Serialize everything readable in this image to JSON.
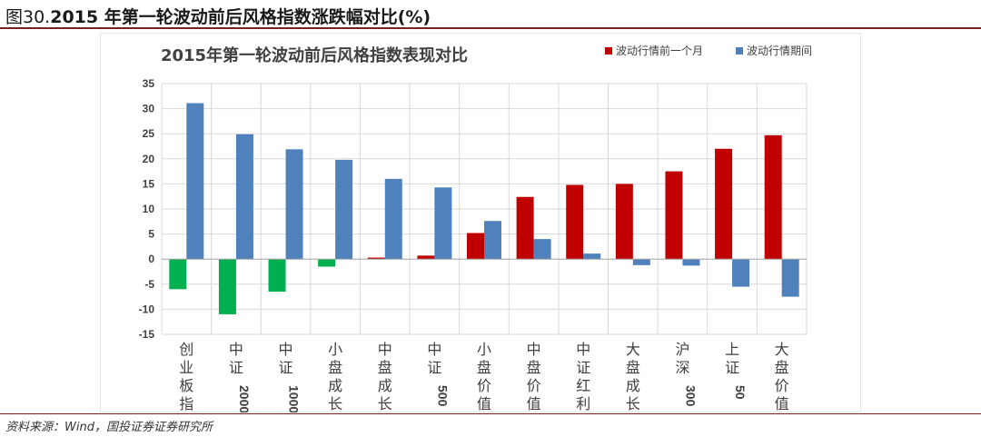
{
  "figure": {
    "label": "图30.",
    "title_bold": "2015 年第一轮波动前后风格指数涨跌幅对比(%)"
  },
  "source": "资料来源：Wind，国投证券证券研究所",
  "colors": {
    "pre": "#c00000",
    "pre_negative": "#00b050",
    "during": "#4f81bd",
    "grid": "#d9d9d9",
    "axis_text": "#404040"
  },
  "chart_data": {
    "type": "bar",
    "title": "2015年第一轮波动前后风格指数表现对比",
    "xlabel": "",
    "ylabel": "",
    "ylim": [
      -15,
      35
    ],
    "yticks": [
      -15,
      -10,
      -5,
      0,
      5,
      10,
      15,
      20,
      25,
      30,
      35
    ],
    "grid": true,
    "legend_position": "top-right",
    "categories": [
      "创业板指",
      "中证2000",
      "中证1000",
      "小盘成长",
      "中盘成长",
      "中证500",
      "小盘价值",
      "中盘价值",
      "中证红利",
      "大盘成长",
      "沪深300",
      "上证50",
      "大盘价值"
    ],
    "category_labels": [
      [
        "创",
        "业",
        "板",
        "指"
      ],
      [
        "中",
        "证",
        "2000"
      ],
      [
        "中",
        "证",
        "1000"
      ],
      [
        "小",
        "盘",
        "成",
        "长"
      ],
      [
        "中",
        "盘",
        "成",
        "长"
      ],
      [
        "中",
        "证",
        "500"
      ],
      [
        "小",
        "盘",
        "价",
        "值"
      ],
      [
        "中",
        "盘",
        "价",
        "值"
      ],
      [
        "中",
        "证",
        "红",
        "利"
      ],
      [
        "大",
        "盘",
        "成",
        "长"
      ],
      [
        "沪",
        "深",
        "300"
      ],
      [
        "上",
        "证",
        "50"
      ],
      [
        "大",
        "盘",
        "价",
        "值"
      ]
    ],
    "series": [
      {
        "name": "波动行情前一个月",
        "values": [
          -6.0,
          -11.0,
          -6.5,
          -1.5,
          0.3,
          0.7,
          5.2,
          12.4,
          14.8,
          15.0,
          17.5,
          22.0,
          24.7
        ]
      },
      {
        "name": "波动行情期间",
        "values": [
          31.1,
          24.9,
          21.9,
          19.8,
          16.0,
          14.3,
          7.6,
          4.0,
          1.1,
          -1.2,
          -1.3,
          -5.5,
          -7.5
        ]
      }
    ]
  }
}
